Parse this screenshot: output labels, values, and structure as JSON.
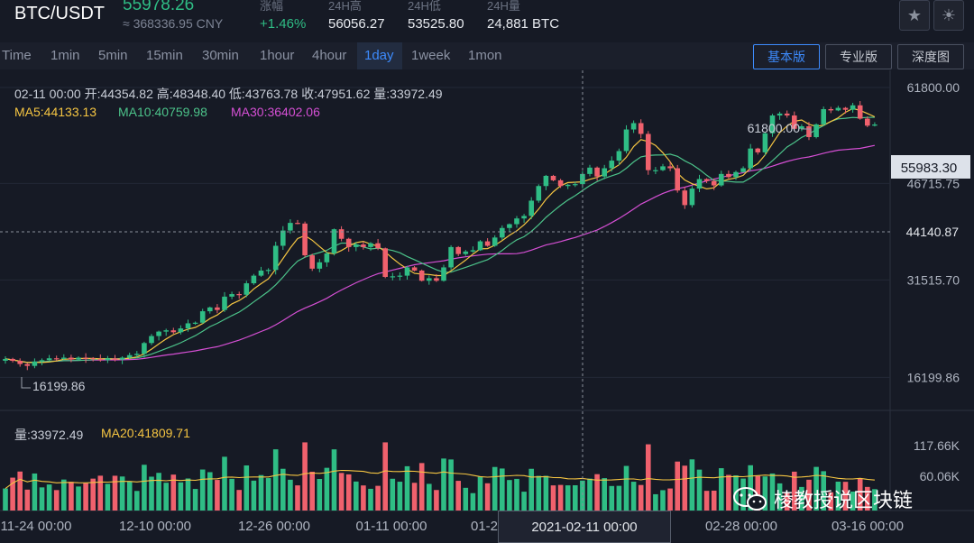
{
  "header": {
    "pair": "BTC/USDT",
    "last_price": "55978.26",
    "cny": "≈ 368336.95 CNY",
    "stats": [
      {
        "label": "涨幅",
        "value": "+1.46%",
        "color": "#2fbd85"
      },
      {
        "label": "24H高",
        "value": "56056.27",
        "color": "#e8ebf0"
      },
      {
        "label": "24H低",
        "value": "53525.80",
        "color": "#e8ebf0"
      },
      {
        "label": "24H量",
        "value": "24,881 BTC",
        "color": "#e8ebf0"
      }
    ],
    "star_icon": "star-icon",
    "theme_icon": "sun-icon"
  },
  "tabs": {
    "items": [
      "Time",
      "1min",
      "5min",
      "15min",
      "30min",
      "1hour",
      "4hour",
      "1day",
      "1week",
      "1mon"
    ],
    "active": "1day"
  },
  "view_buttons": {
    "items": [
      "基本版",
      "专业版",
      "深度图"
    ],
    "active": "基本版"
  },
  "ohlc_info": "02-11 00:00  开:44354.82 高:48348.40 低:43763.78 收:47951.62 量:33972.49",
  "ma_info": {
    "ma5": "MA5:44133.13",
    "ma10": "MA10:40759.98",
    "ma30": "MA30:36402.06"
  },
  "volume_info": {
    "vol": "量:33972.49",
    "ma20": "MA20:41809.71"
  },
  "price_axis": [
    "61800.00",
    "46715.75",
    "31515.70",
    "16199.86"
  ],
  "price_axis_tags": {
    "current": "55983.30",
    "crosshair": "44140.87"
  },
  "volume_axis": [
    "117.66K",
    "60.06K"
  ],
  "annotations": {
    "high": "61800.00",
    "low": "16199.86"
  },
  "time_axis": [
    "11-24 00:00",
    "12-10 00:00",
    "12-26 00:00",
    "01-11 00:00",
    "01-2",
    "02-28 00:00",
    "03-16 00:00"
  ],
  "crosshair_time": "2021-02-11 00:00",
  "watermark": "棱教授说区块链",
  "colors": {
    "up": "#2fbd85",
    "down": "#f0616d",
    "ma5": "#f5c542",
    "ma10": "#4cc38a",
    "ma30": "#d54fd4",
    "accent": "#3d8bfd"
  },
  "chart_data": {
    "type": "candlestick",
    "y_range": [
      11000,
      64500
    ],
    "closes": [
      19100,
      18800,
      18300,
      18000,
      18700,
      18900,
      19200,
      19100,
      19300,
      19000,
      19300,
      19200,
      19100,
      18900,
      19200,
      19000,
      19300,
      19700,
      19900,
      21600,
      22700,
      23400,
      23600,
      23300,
      23900,
      24700,
      24800,
      26600,
      27200,
      26800,
      28900,
      29300,
      29200,
      31000,
      32200,
      33000,
      33100,
      36900,
      39300,
      40500,
      40400,
      35400,
      33300,
      34300,
      35700,
      39500,
      38000,
      36700,
      37100,
      36700,
      37300,
      36500,
      32000,
      32100,
      32200,
      33500,
      33000,
      31400,
      31800,
      31400,
      33500,
      36700,
      35600,
      36000,
      36200,
      37600,
      36900,
      38200,
      39700,
      40300,
      41200,
      41600,
      44000,
      46300,
      47900,
      47200,
      46300,
      46500,
      46600,
      48200,
      49200,
      47800,
      49100,
      50300,
      51800,
      55200,
      56200,
      54500,
      48800,
      48800,
      49400,
      49100,
      45600,
      43300,
      45900,
      47400,
      47100,
      46400,
      48200,
      47700,
      48500,
      49100,
      52200,
      51600,
      54600,
      57400,
      57700,
      57400,
      55300,
      55700,
      54000,
      56000,
      58400,
      58200,
      58600,
      58300,
      59000,
      56900,
      55800,
      55978
    ],
    "volume_axis": [
      "117.66K",
      "60.06K"
    ]
  }
}
